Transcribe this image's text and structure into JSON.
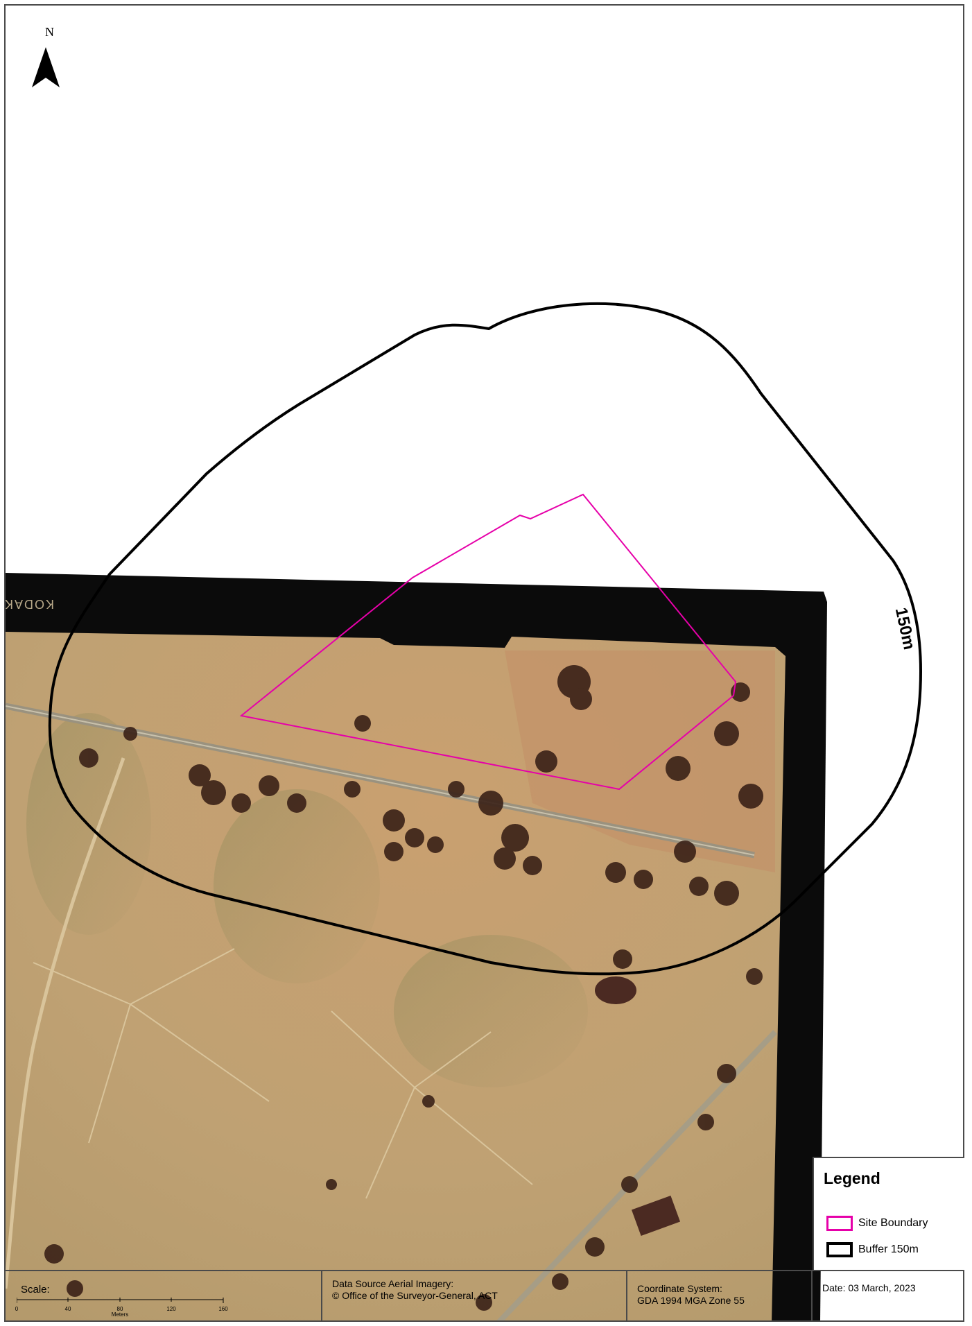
{
  "map": {
    "north_label": "N",
    "buffer_label": "150m",
    "film_edge_text": "KODAK SA",
    "colors": {
      "site_boundary": "#e600a9",
      "buffer": "#000000",
      "ground": "#c9a877",
      "film_border": "#0b0b0b"
    }
  },
  "legend": {
    "title": "Legend",
    "items": [
      {
        "label": "Site Boundary",
        "color": "#e600a9"
      },
      {
        "label": "Buffer 150m",
        "color": "#000000"
      }
    ]
  },
  "footer": {
    "scale": {
      "title": "Scale:",
      "ticks": [
        "0",
        "40",
        "80",
        "120",
        "160"
      ],
      "unit": "Meters"
    },
    "data_source": "Data Source Aerial Imagery:\n© Office of the Surveyor-General, ACT",
    "coordinate_system": "Coordinate System:\nGDA 1994 MGA Zone 55",
    "date": "Date: 03 March, 2023"
  }
}
